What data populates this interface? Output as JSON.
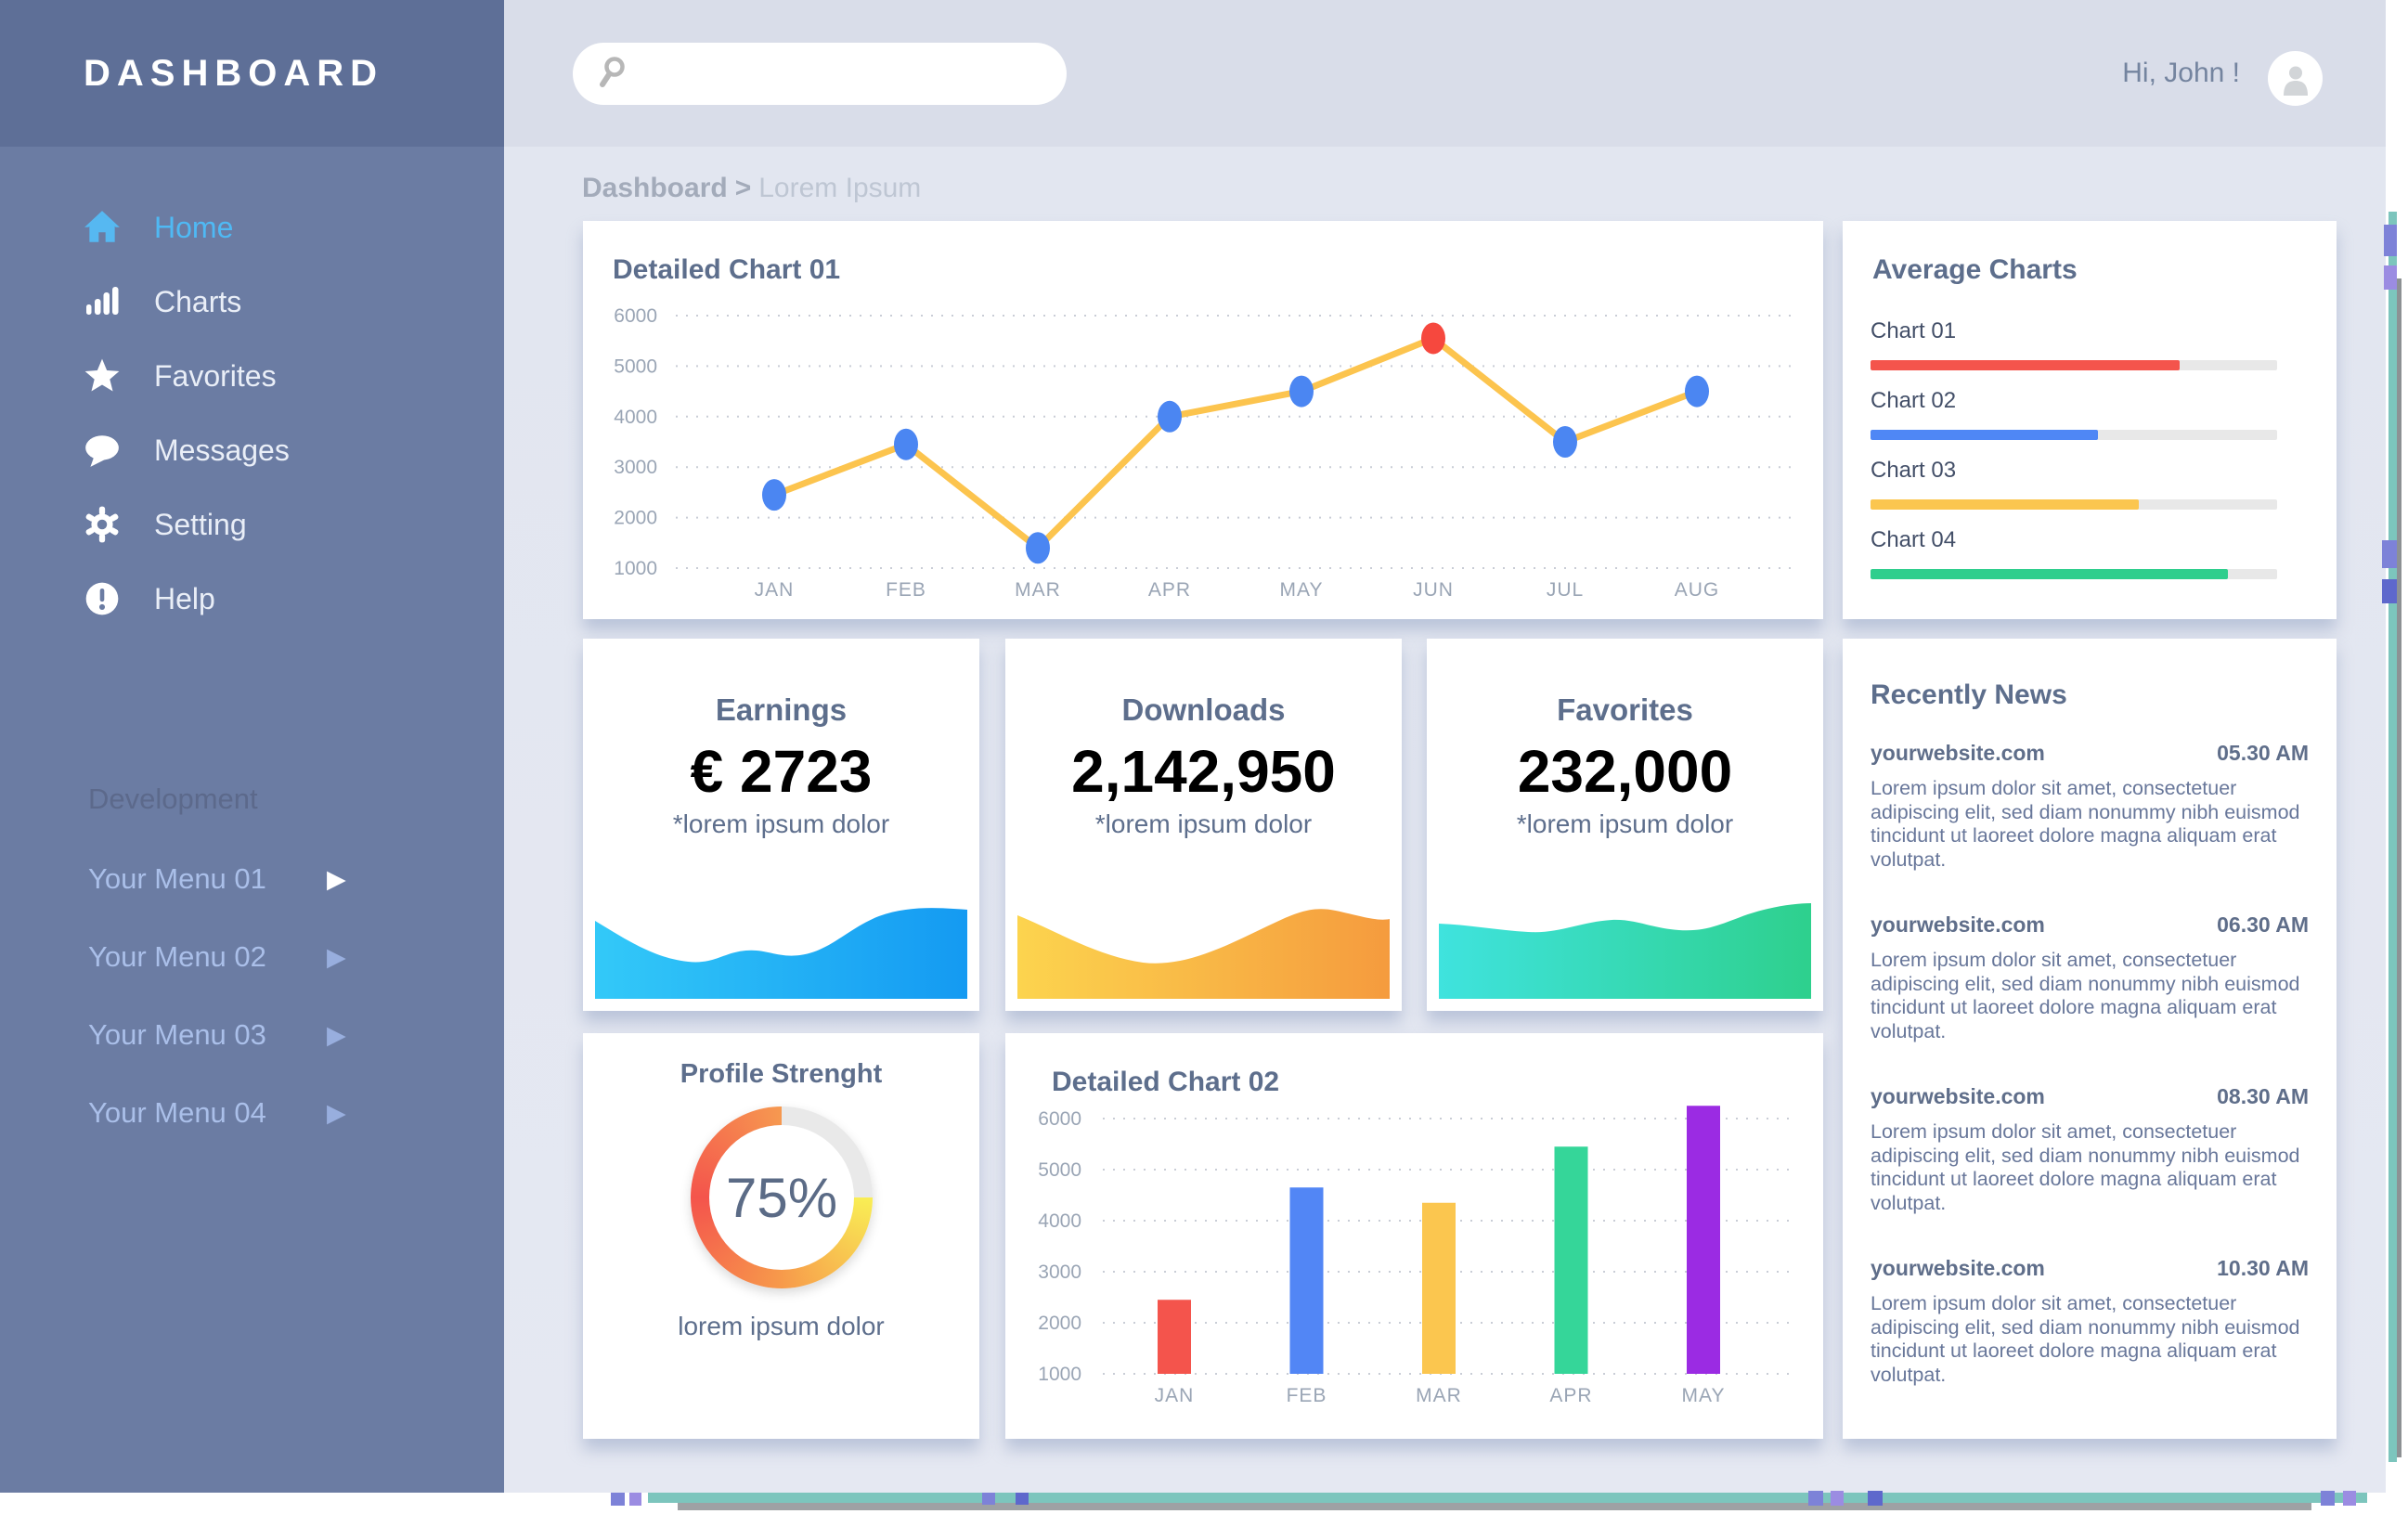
{
  "sidebar": {
    "title": "DASHBOARD",
    "nav": [
      {
        "label": "Home",
        "icon": "home-icon",
        "active": true
      },
      {
        "label": "Charts",
        "icon": "charts-icon",
        "active": false
      },
      {
        "label": "Favorites",
        "icon": "star-icon",
        "active": false
      },
      {
        "label": "Messages",
        "icon": "message-icon",
        "active": false
      },
      {
        "label": "Setting",
        "icon": "gear-icon",
        "active": false
      },
      {
        "label": "Help",
        "icon": "help-icon",
        "active": false
      }
    ],
    "section_title": "Development",
    "menus": [
      {
        "label": "Your Menu 01",
        "highlight": true
      },
      {
        "label": "Your Menu 02",
        "highlight": false
      },
      {
        "label": "Your Menu 03",
        "highlight": false
      },
      {
        "label": "Your Menu 04",
        "highlight": false
      }
    ]
  },
  "topbar": {
    "search_placeholder": "",
    "greeting": "Hi, John !"
  },
  "breadcrumb": {
    "root": "Dashboard",
    "separator": ">",
    "current": "Lorem Ipsum"
  },
  "chart_data": [
    {
      "id": "detailed-chart-01",
      "type": "line",
      "title": "Detailed Chart 01",
      "x": [
        "JAN",
        "FEB",
        "MAR",
        "APR",
        "MAY",
        "JUN",
        "JUL",
        "AUG"
      ],
      "values": [
        2450,
        3450,
        1400,
        4000,
        4500,
        5550,
        3500,
        4500
      ],
      "baseline": 1000,
      "ylim": [
        1000,
        6000
      ],
      "yticks": [
        1000,
        2000,
        3000,
        4000,
        5000,
        6000
      ],
      "grid": "dotted-horizontal",
      "legend": "none",
      "line_color": "#fcc44e",
      "point_color": "#4b86f2",
      "highlight_point": {
        "x": "JUN",
        "index": 5,
        "color": "#f6483e"
      }
    },
    {
      "id": "average-charts",
      "type": "bar",
      "variant": "horizontal-progress",
      "title": "Average Charts",
      "categories": [
        "Chart 01",
        "Chart 02",
        "Chart 03",
        "Chart 04"
      ],
      "values": [
        76,
        56,
        66,
        88
      ],
      "unit": "%",
      "colors": [
        "#f4544c",
        "#4f87f5",
        "#fbc64f",
        "#2fce8d"
      ],
      "track_color": "#e8e8e8"
    },
    {
      "id": "earnings",
      "type": "area",
      "title": "Earnings",
      "value": "€ 2723",
      "note": "*lorem ipsum dolor",
      "number_color": "#56c1f8",
      "gradient": [
        "#33c9f8",
        "#149af2"
      ]
    },
    {
      "id": "downloads",
      "type": "area",
      "title": "Downloads",
      "value": "2,142,950",
      "note": "*lorem ipsum dolor",
      "number_color": "#fbc64f",
      "gradient": [
        "#fcd44e",
        "#f59b3e"
      ]
    },
    {
      "id": "favorites",
      "type": "area",
      "title": "Favorites",
      "value": "232,000",
      "note": "*lorem ipsum dolor",
      "number_color": "#2fd793",
      "gradient": [
        "#3fe3de",
        "#2ed08d"
      ]
    },
    {
      "id": "profile-strength",
      "type": "donut",
      "title": "Profile Strenght",
      "percent": 75,
      "label": "75%",
      "note": "lorem ipsum dolor",
      "track_color": "#e9e9e9",
      "segment_colors": [
        "#f9ee55",
        "#f79a4b",
        "#f4544c",
        "#f69950"
      ]
    },
    {
      "id": "detailed-chart-02",
      "type": "bar",
      "title": "Detailed Chart 02",
      "categories": [
        "JAN",
        "FEB",
        "MAR",
        "APR",
        "MAY"
      ],
      "values": [
        2450,
        4650,
        4350,
        5450,
        6250
      ],
      "baseline": 1000,
      "ylim": [
        1000,
        6000
      ],
      "yticks": [
        1000,
        2000,
        3000,
        4000,
        5000,
        6000
      ],
      "grid": "dotted-horizontal",
      "colors": [
        "#f4544c",
        "#5286f5",
        "#fbc64f",
        "#35d699",
        "#9b2be3"
      ]
    }
  ],
  "news": {
    "title": "Recently News",
    "items": [
      {
        "source": "yourwebsite.com",
        "time": "05.30 AM",
        "body": "Lorem ipsum dolor sit amet, consectetuer adipiscing elit, sed diam nonummy nibh euismod tincidunt ut laoreet dolore magna aliquam erat volutpat."
      },
      {
        "source": "yourwebsite.com",
        "time": "06.30 AM",
        "body": "Lorem ipsum dolor sit amet, consectetuer adipiscing elit, sed diam nonummy nibh euismod tincidunt ut laoreet dolore magna aliquam erat volutpat."
      },
      {
        "source": "yourwebsite.com",
        "time": "08.30 AM",
        "body": "Lorem ipsum dolor sit amet, consectetuer adipiscing elit, sed diam nonummy nibh euismod tincidunt ut laoreet dolore magna aliquam erat volutpat."
      },
      {
        "source": "yourwebsite.com",
        "time": "10.30 AM",
        "body": "Lorem ipsum dolor sit amet, consectetuer adipiscing elit, sed diam nonummy nibh euismod tincidunt ut laoreet dolore magna aliquam erat volutpat."
      }
    ]
  }
}
